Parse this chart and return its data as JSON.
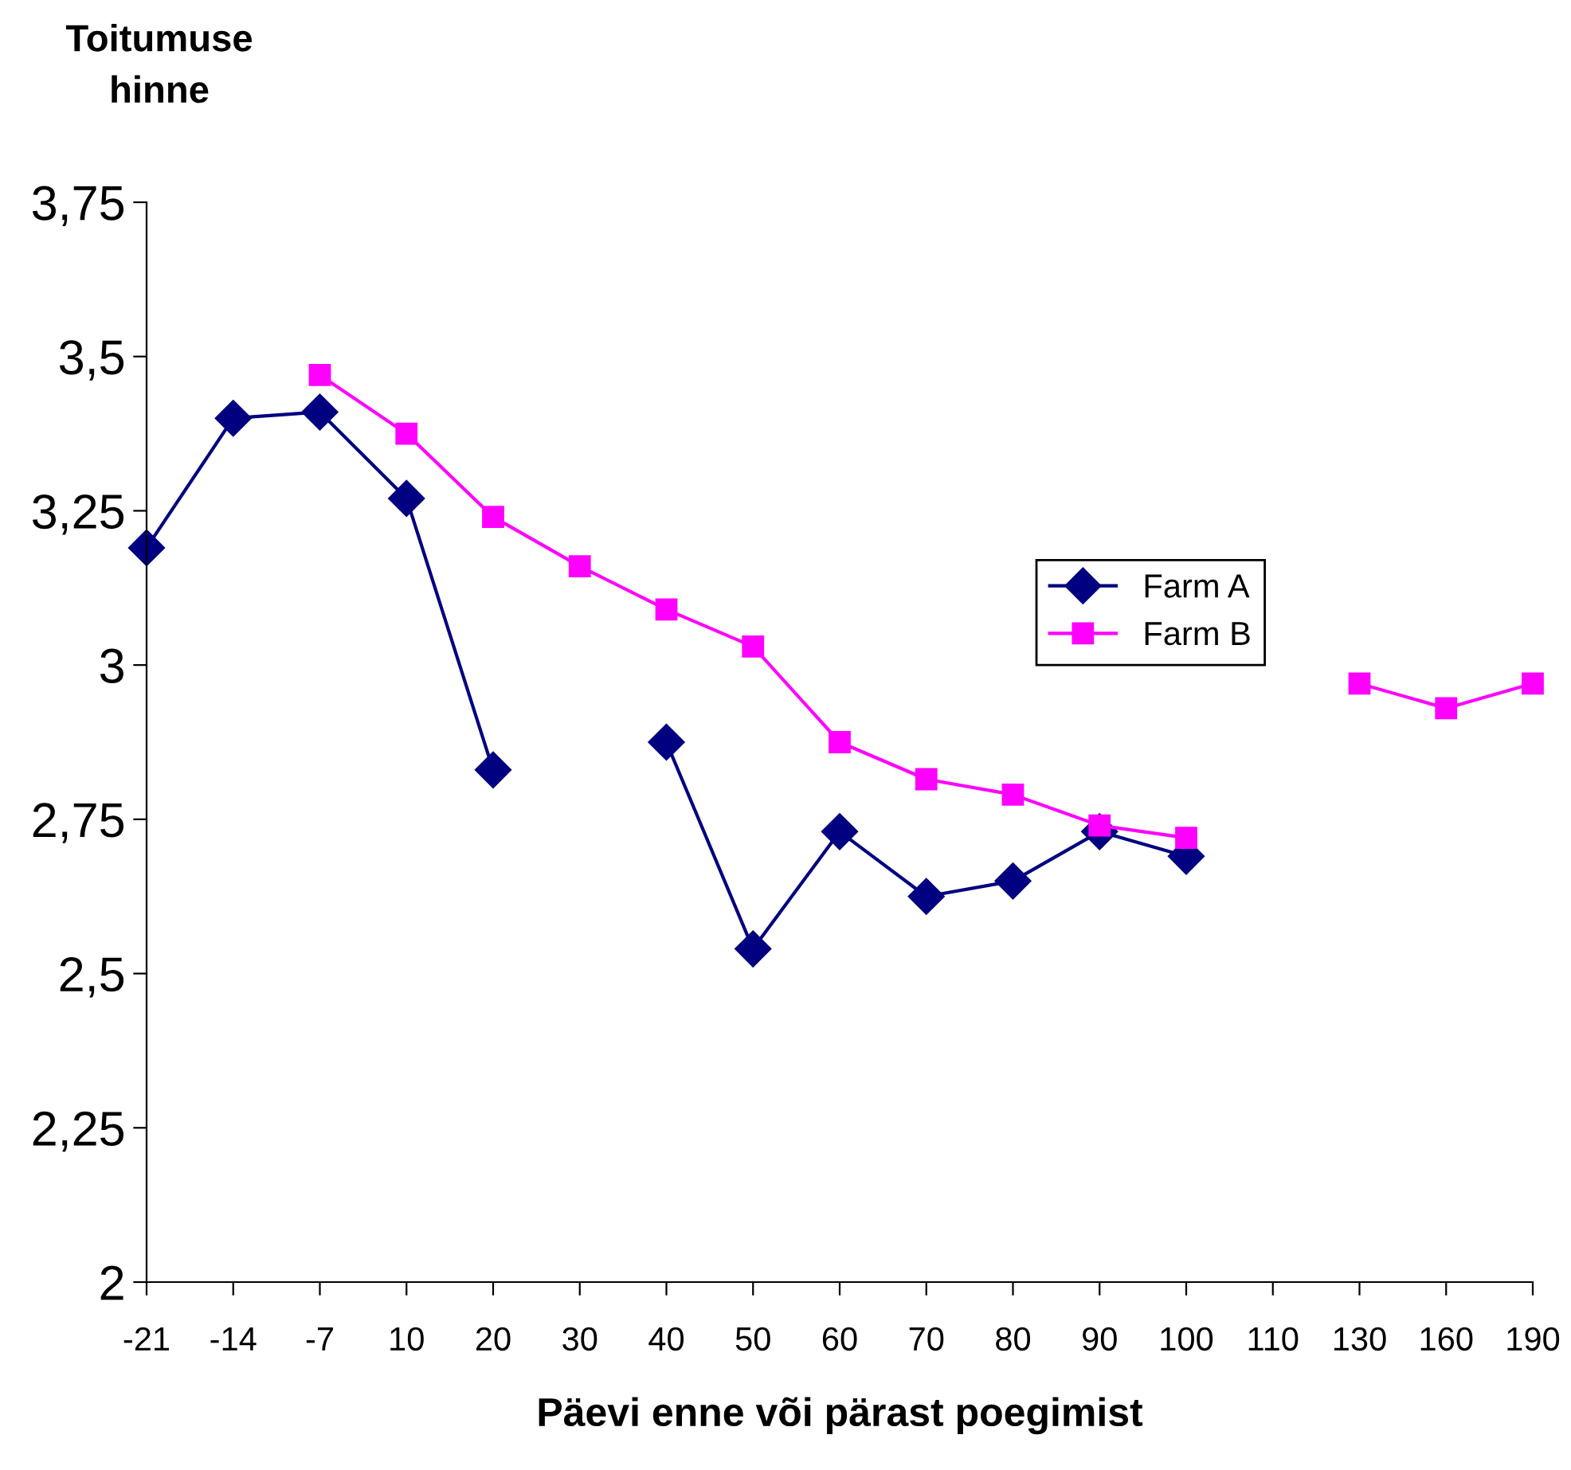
{
  "chart_data": {
    "type": "line",
    "ylabel": "Toitumuse\nhinne",
    "xlabel": "Päevi enne või pärast poegimist",
    "categories": [
      "-21",
      "-14",
      "-7",
      "10",
      "20",
      "30",
      "40",
      "50",
      "60",
      "70",
      "80",
      "90",
      "100",
      "110",
      "130",
      "160",
      "190"
    ],
    "series": [
      {
        "name": "Farm A",
        "color": "#000080",
        "marker": "diamond",
        "values": [
          3.19,
          3.4,
          3.41,
          3.27,
          2.83,
          null,
          2.875,
          2.54,
          2.73,
          2.625,
          2.65,
          2.73,
          2.69,
          null,
          null,
          null,
          null
        ]
      },
      {
        "name": "Farm B",
        "color": "#ff00ff",
        "marker": "square",
        "values": [
          null,
          null,
          3.47,
          3.375,
          3.24,
          3.16,
          3.09,
          3.03,
          2.875,
          2.815,
          2.79,
          2.74,
          2.72,
          null,
          2.97,
          2.93,
          2.97
        ]
      }
    ],
    "ylim": [
      2,
      3.75
    ],
    "yticks": [
      2,
      {
        "value": 2.25,
        "label": "2,25"
      },
      {
        "value": 2.5,
        "label": "2,5"
      },
      {
        "value": 2.75,
        "label": "2,75"
      },
      3,
      {
        "value": 3.25,
        "label": "3,25"
      },
      {
        "value": 3.5,
        "label": "3,5"
      },
      {
        "value": 3.75,
        "label": "3,75"
      }
    ],
    "grid": false,
    "legend": "right",
    "line_style": "solid"
  }
}
